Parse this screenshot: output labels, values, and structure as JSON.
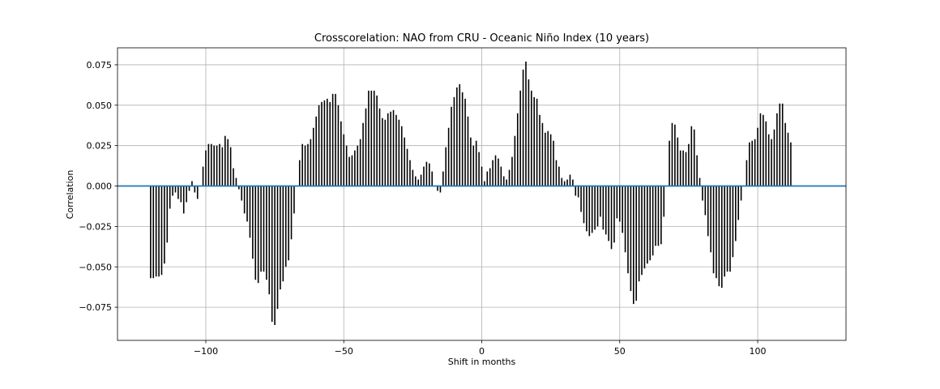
{
  "chart_data": {
    "type": "bar",
    "title": "Crosscorelation: NAO from CRU - Oceanic Niño Index (10 years)",
    "xlabel": "Shift in months",
    "ylabel": "Correlation",
    "xlim": [
      -132,
      132
    ],
    "ylim": [
      -0.0955,
      0.0855
    ],
    "xticks": [
      -100,
      -50,
      0,
      50,
      100
    ],
    "xtick_labels": [
      "−100",
      "−50",
      "0",
      "50",
      "100"
    ],
    "yticks": [
      -0.075,
      -0.05,
      -0.025,
      0.0,
      0.025,
      0.05,
      0.075
    ],
    "ytick_labels": [
      "−0.075",
      "−0.050",
      "−0.025",
      "0.000",
      "0.025",
      "0.050",
      "0.075"
    ],
    "grid": true,
    "bar_color": "#000000",
    "zero_line_color": "#1f77b4",
    "x_start": -120,
    "values": [
      -0.057,
      -0.057,
      -0.056,
      -0.056,
      -0.055,
      -0.048,
      -0.035,
      -0.014,
      -0.006,
      -0.004,
      -0.008,
      -0.01,
      -0.017,
      -0.01,
      -0.003,
      0.003,
      -0.004,
      -0.008,
      0.0,
      0.012,
      0.022,
      0.026,
      0.026,
      0.025,
      0.025,
      0.026,
      0.024,
      0.031,
      0.029,
      0.024,
      0.011,
      0.005,
      -0.002,
      -0.009,
      -0.017,
      -0.022,
      -0.032,
      -0.045,
      -0.058,
      -0.06,
      -0.053,
      -0.053,
      -0.058,
      -0.067,
      -0.084,
      -0.086,
      -0.076,
      -0.064,
      -0.059,
      -0.05,
      -0.046,
      -0.033,
      -0.017,
      0.0,
      0.016,
      0.026,
      0.025,
      0.026,
      0.029,
      0.036,
      0.043,
      0.05,
      0.052,
      0.053,
      0.054,
      0.052,
      0.057,
      0.057,
      0.05,
      0.04,
      0.032,
      0.025,
      0.018,
      0.019,
      0.022,
      0.025,
      0.029,
      0.039,
      0.048,
      0.059,
      0.059,
      0.059,
      0.056,
      0.048,
      0.042,
      0.041,
      0.045,
      0.046,
      0.047,
      0.044,
      0.041,
      0.037,
      0.03,
      0.023,
      0.016,
      0.01,
      0.006,
      0.004,
      0.007,
      0.012,
      0.015,
      0.014,
      0.009,
      0.0,
      -0.003,
      -0.004,
      0.009,
      0.024,
      0.036,
      0.049,
      0.055,
      0.061,
      0.063,
      0.058,
      0.054,
      0.043,
      0.03,
      0.025,
      0.028,
      0.021,
      0.012,
      0.003,
      0.009,
      0.011,
      0.016,
      0.019,
      0.017,
      0.012,
      0.006,
      0.004,
      0.01,
      0.018,
      0.031,
      0.045,
      0.059,
      0.072,
      0.077,
      0.066,
      0.059,
      0.055,
      0.054,
      0.044,
      0.039,
      0.033,
      0.034,
      0.032,
      0.028,
      0.016,
      0.012,
      0.005,
      0.003,
      0.004,
      0.007,
      0.004,
      -0.006,
      -0.007,
      -0.016,
      -0.023,
      -0.028,
      -0.031,
      -0.029,
      -0.027,
      -0.025,
      -0.019,
      -0.027,
      -0.03,
      -0.034,
      -0.039,
      -0.035,
      -0.02,
      -0.022,
      -0.029,
      -0.041,
      -0.054,
      -0.065,
      -0.073,
      -0.071,
      -0.059,
      -0.055,
      -0.051,
      -0.048,
      -0.046,
      -0.043,
      -0.037,
      -0.037,
      -0.036,
      -0.019,
      0.0,
      0.028,
      0.039,
      0.038,
      0.03,
      0.022,
      0.022,
      0.021,
      0.026,
      0.037,
      0.035,
      0.019,
      0.005,
      -0.009,
      -0.018,
      -0.031,
      -0.041,
      -0.054,
      -0.057,
      -0.062,
      -0.063,
      -0.056,
      -0.053,
      -0.053,
      -0.044,
      -0.034,
      -0.021,
      -0.009,
      0.0,
      0.016,
      0.027,
      0.028,
      0.029,
      0.036,
      0.045,
      0.044,
      0.04,
      0.032,
      0.029,
      0.035,
      0.045,
      0.051,
      0.051,
      0.039,
      0.033,
      0.027
    ]
  }
}
